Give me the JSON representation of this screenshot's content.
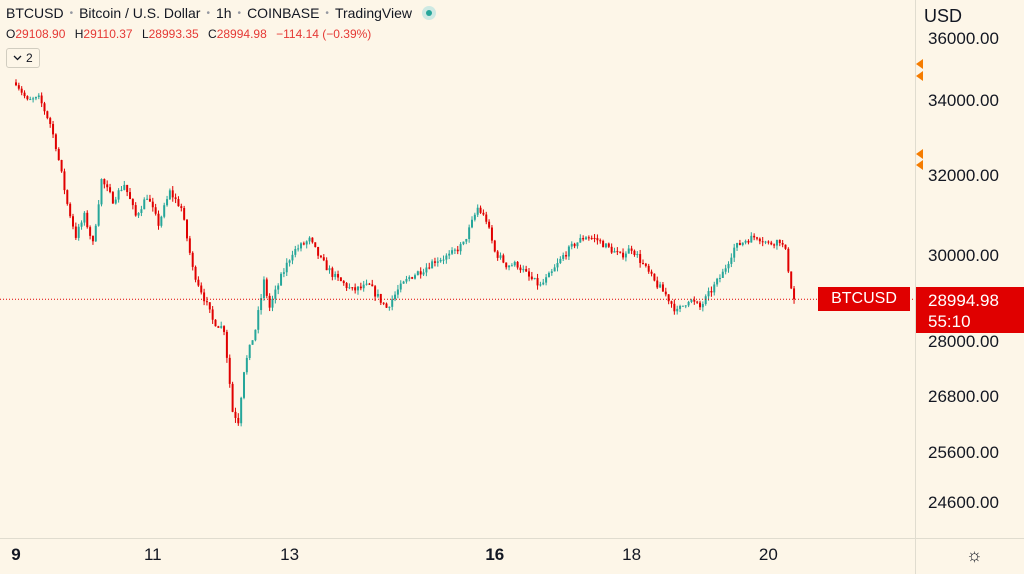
{
  "header": {
    "symbol": "BTCUSD",
    "name": "Bitcoin / U.S. Dollar",
    "interval": "1h",
    "exchange": "COINBASE",
    "source": "TradingView"
  },
  "ohlc": {
    "o_label": "O",
    "o_value": "29108.90",
    "h_label": "H",
    "h_value": "29110.37",
    "l_label": "L",
    "l_value": "28993.35",
    "c_label": "C",
    "c_value": "28994.98",
    "change": "−114.14 (−0.39%)"
  },
  "indicators_toggle": {
    "count": "2",
    "icon": "chevron-down-icon"
  },
  "price_axis": {
    "currency": "USD"
  },
  "last_price": {
    "symbol": "BTCUSD",
    "price": "28994.98",
    "countdown": "55:10",
    "value": 28994.98
  },
  "settings_icon": "gear-icon",
  "colors": {
    "up": "#26a69a",
    "down": "#e00000",
    "background": "#fdf6e8",
    "alert": "#f57c00"
  },
  "chart_data": {
    "type": "candlestick",
    "y_ticks": [
      {
        "label": "36000.00",
        "value": 36000
      },
      {
        "label": "34000.00",
        "value": 34000
      },
      {
        "label": "32000.00",
        "value": 32000
      },
      {
        "label": "30000.00",
        "value": 30000
      },
      {
        "label": "28000.00",
        "value": 28000
      },
      {
        "label": "26800.00",
        "value": 26800
      },
      {
        "label": "25600.00",
        "value": 25600
      },
      {
        "label": "24600.00",
        "value": 24600
      }
    ],
    "x_ticks": [
      {
        "label": "9",
        "bold": true,
        "index": 0
      },
      {
        "label": "11",
        "bold": false,
        "index": 48
      },
      {
        "label": "13",
        "bold": false,
        "index": 96
      },
      {
        "label": "16",
        "bold": true,
        "index": 168
      },
      {
        "label": "18",
        "bold": false,
        "index": 216
      },
      {
        "label": "20",
        "bold": false,
        "index": 264
      }
    ],
    "alert_levels": [
      35200,
      34800,
      32600,
      32300
    ],
    "anchors": [
      [
        0,
        34600
      ],
      [
        4,
        34000
      ],
      [
        8,
        34100
      ],
      [
        12,
        33400
      ],
      [
        14,
        32800
      ],
      [
        18,
        31300
      ],
      [
        21,
        30500
      ],
      [
        24,
        31000
      ],
      [
        27,
        30300
      ],
      [
        30,
        31900
      ],
      [
        34,
        31400
      ],
      [
        38,
        31800
      ],
      [
        42,
        31000
      ],
      [
        46,
        31500
      ],
      [
        50,
        30800
      ],
      [
        54,
        31600
      ],
      [
        58,
        31200
      ],
      [
        62,
        29700
      ],
      [
        65,
        29200
      ],
      [
        69,
        28500
      ],
      [
        73,
        28300
      ],
      [
        76,
        26500
      ],
      [
        78,
        26300
      ],
      [
        80,
        27400
      ],
      [
        84,
        28300
      ],
      [
        87,
        29400
      ],
      [
        89,
        28800
      ],
      [
        93,
        29500
      ],
      [
        97,
        30100
      ],
      [
        103,
        30400
      ],
      [
        107,
        29900
      ],
      [
        112,
        29500
      ],
      [
        118,
        29200
      ],
      [
        124,
        29300
      ],
      [
        130,
        28800
      ],
      [
        134,
        29200
      ],
      [
        138,
        29500
      ],
      [
        143,
        29700
      ],
      [
        147,
        29900
      ],
      [
        152,
        30000
      ],
      [
        157,
        30300
      ],
      [
        162,
        31200
      ],
      [
        165,
        30900
      ],
      [
        168,
        30100
      ],
      [
        172,
        29800
      ],
      [
        176,
        29800
      ],
      [
        180,
        29500
      ],
      [
        184,
        29300
      ],
      [
        188,
        29600
      ],
      [
        192,
        30000
      ],
      [
        196,
        30300
      ],
      [
        200,
        30500
      ],
      [
        204,
        30400
      ],
      [
        208,
        30200
      ],
      [
        212,
        30000
      ],
      [
        216,
        30200
      ],
      [
        220,
        29800
      ],
      [
        224,
        29400
      ],
      [
        228,
        29100
      ],
      [
        232,
        28700
      ],
      [
        236,
        29000
      ],
      [
        240,
        28800
      ],
      [
        244,
        29200
      ],
      [
        248,
        29600
      ],
      [
        252,
        30200
      ],
      [
        256,
        30400
      ],
      [
        260,
        30500
      ],
      [
        264,
        30300
      ],
      [
        268,
        30400
      ],
      [
        270,
        30100
      ],
      [
        272,
        29300
      ],
      [
        273,
        28995
      ]
    ]
  }
}
